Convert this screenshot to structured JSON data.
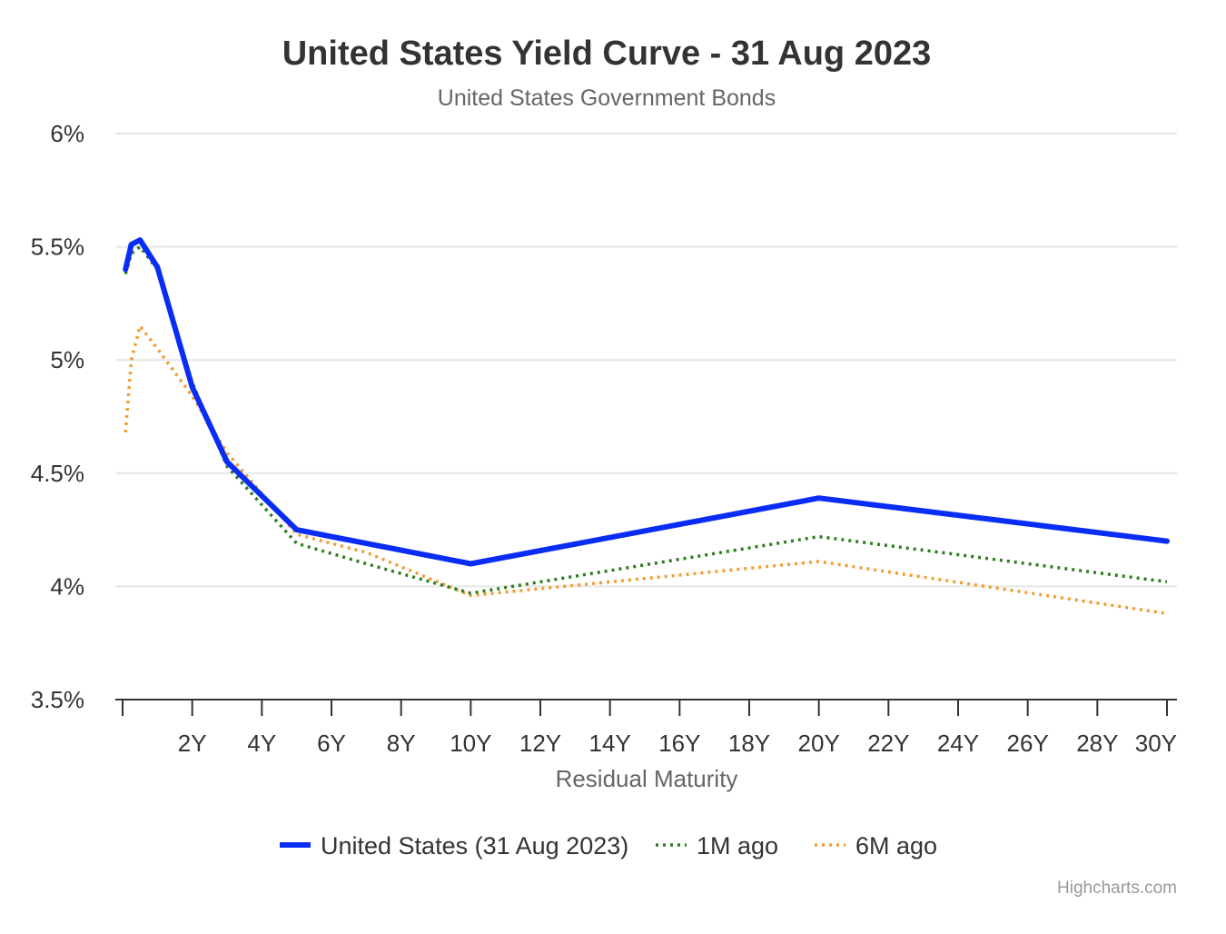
{
  "chart_data": {
    "type": "line",
    "title": "United States Yield Curve - 31 Aug 2023",
    "subtitle": "United States Government Bonds",
    "xlabel": "Residual Maturity",
    "ylabel": "",
    "xlim": [
      0,
      30
    ],
    "ylim": [
      3.5,
      6
    ],
    "y_ticks": [
      3.5,
      4,
      4.5,
      5,
      5.5,
      6
    ],
    "y_tick_labels": [
      "3.5%",
      "4%",
      "4.5%",
      "5%",
      "5.5%",
      "6%"
    ],
    "x_ticks": [
      2,
      4,
      6,
      8,
      10,
      12,
      14,
      16,
      18,
      20,
      22,
      24,
      26,
      28,
      30
    ],
    "x_tick_labels": [
      "2Y",
      "4Y",
      "6Y",
      "8Y",
      "10Y",
      "12Y",
      "14Y",
      "16Y",
      "18Y",
      "20Y",
      "22Y",
      "24Y",
      "26Y",
      "28Y",
      "30Y"
    ],
    "grid": true,
    "legend_position": "bottom-center",
    "series": [
      {
        "name": "United States (31 Aug 2023)",
        "color": "#0a2df5",
        "style": "solid",
        "x": [
          0.083,
          0.25,
          0.5,
          1,
          2,
          3,
          5,
          7,
          10,
          20,
          30
        ],
        "y": [
          5.4,
          5.51,
          5.53,
          5.41,
          4.88,
          4.55,
          4.25,
          4.19,
          4.1,
          4.39,
          4.2
        ]
      },
      {
        "name": "1M ago",
        "color": "#2e7d1f",
        "style": "dotted",
        "x": [
          0.083,
          0.25,
          0.5,
          1,
          2,
          3,
          5,
          7,
          10,
          20,
          30
        ],
        "y": [
          5.38,
          5.47,
          5.5,
          5.4,
          4.9,
          4.53,
          4.19,
          4.1,
          3.97,
          4.22,
          4.02
        ]
      },
      {
        "name": "6M ago",
        "color": "#f39c33",
        "style": "dotted",
        "x": [
          0.083,
          0.25,
          0.5,
          1,
          2,
          3,
          5,
          7,
          10,
          20,
          30
        ],
        "y": [
          4.68,
          5.0,
          5.15,
          5.05,
          4.84,
          4.59,
          4.23,
          4.15,
          3.96,
          4.11,
          3.88
        ]
      }
    ]
  },
  "credits": "Highcharts.com"
}
